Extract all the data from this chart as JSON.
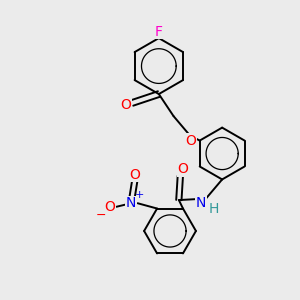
{
  "background_color": "#ebebeb",
  "line_color": "#000000",
  "bond_width": 1.4,
  "atoms": {
    "F": {
      "color": "#ff00cc",
      "fontsize": 10
    },
    "O": {
      "color": "#ff0000",
      "fontsize": 10
    },
    "N": {
      "color": "#0000ee",
      "fontsize": 10
    },
    "H": {
      "color": "#339999",
      "fontsize": 10
    },
    "plus": {
      "color": "#0000ee",
      "fontsize": 8
    },
    "minus": {
      "color": "#ff0000",
      "fontsize": 9
    }
  },
  "fig_size": [
    3.0,
    3.0
  ],
  "dpi": 100
}
